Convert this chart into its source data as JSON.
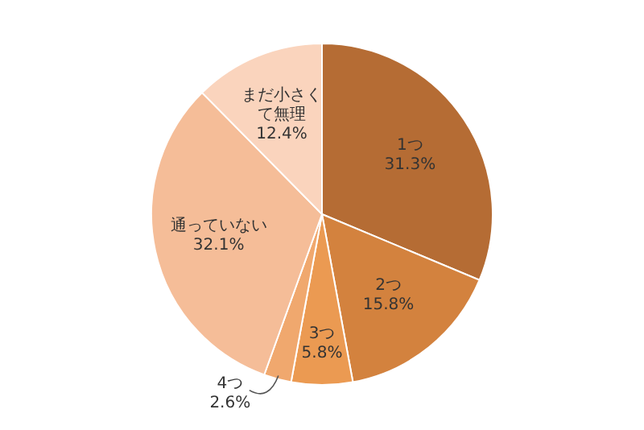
{
  "chart_data": {
    "type": "pie",
    "categories": [
      "1つ",
      "2つ",
      "3つ",
      "4つ",
      "通っていない",
      "まだ小さくて無理"
    ],
    "values": [
      31.3,
      15.8,
      5.8,
      2.6,
      32.1,
      12.4
    ],
    "value_labels": [
      "31.3%",
      "15.8%",
      "5.8%",
      "2.6%",
      "32.1%",
      "12.4%"
    ],
    "colors": [
      "#b56c34",
      "#d3823e",
      "#eb9a52",
      "#f0a86e",
      "#f5bd98",
      "#fad4bd"
    ]
  }
}
